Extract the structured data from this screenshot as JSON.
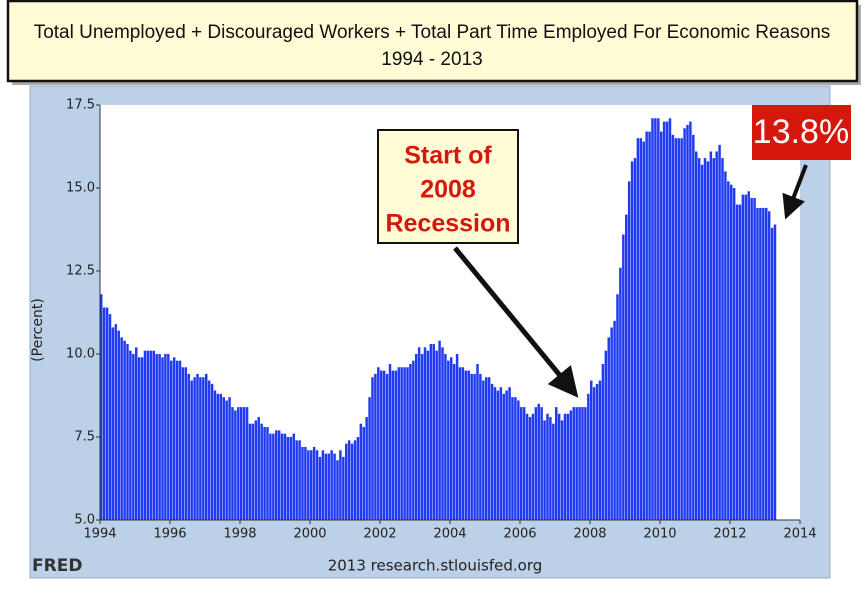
{
  "chart_data": {
    "type": "bar",
    "title": "Total Unemployed + Discouraged  Workers + Total Part Time Employed For Economic Reasons",
    "subtitle": "1994 - 2013",
    "y_label": "(Percent)",
    "source": "2013 research.stlouisfed.org",
    "logo": "FRED",
    "annotations": [
      {
        "lines": [
          "Start of",
          "2008",
          "Recession"
        ]
      },
      {
        "lines": [
          "13.8%"
        ]
      }
    ],
    "color": "#1f3af0",
    "grid": false,
    "xlim": [
      1994,
      2014
    ],
    "xticks": [
      1994,
      1996,
      1998,
      2000,
      2002,
      2004,
      2006,
      2008,
      2010,
      2012,
      2014
    ],
    "ylim": [
      5,
      17.5
    ],
    "yticks": [
      {
        "value": 5,
        "label": "5.0"
      },
      {
        "value": 7.5,
        "label": "7.5"
      },
      {
        "value": 10,
        "label": "10.0"
      },
      {
        "value": 12.5,
        "label": "12.5"
      },
      {
        "value": 15,
        "label": "15.0"
      },
      {
        "value": 17.5,
        "label": "17.5"
      }
    ],
    "x": [
      1994.0,
      1994.083,
      1994.167,
      1994.25,
      1994.333,
      1994.417,
      1994.5,
      1994.583,
      1994.667,
      1994.75,
      1994.833,
      1994.917,
      1995.0,
      1995.083,
      1995.167,
      1995.25,
      1995.333,
      1995.417,
      1995.5,
      1995.583,
      1995.667,
      1995.75,
      1995.833,
      1995.917,
      1996.0,
      1996.083,
      1996.167,
      1996.25,
      1996.333,
      1996.417,
      1996.5,
      1996.583,
      1996.667,
      1996.75,
      1996.833,
      1996.917,
      1997.0,
      1997.083,
      1997.167,
      1997.25,
      1997.333,
      1997.417,
      1997.5,
      1997.583,
      1997.667,
      1997.75,
      1997.833,
      1997.917,
      1998.0,
      1998.083,
      1998.167,
      1998.25,
      1998.333,
      1998.417,
      1998.5,
      1998.583,
      1998.667,
      1998.75,
      1998.833,
      1998.917,
      1999.0,
      1999.083,
      1999.167,
      1999.25,
      1999.333,
      1999.417,
      1999.5,
      1999.583,
      1999.667,
      1999.75,
      1999.833,
      1999.917,
      2000.0,
      2000.083,
      2000.167,
      2000.25,
      2000.333,
      2000.417,
      2000.5,
      2000.583,
      2000.667,
      2000.75,
      2000.833,
      2000.917,
      2001.0,
      2001.083,
      2001.167,
      2001.25,
      2001.333,
      2001.417,
      2001.5,
      2001.583,
      2001.667,
      2001.75,
      2001.833,
      2001.917,
      2002.0,
      2002.083,
      2002.167,
      2002.25,
      2002.333,
      2002.417,
      2002.5,
      2002.583,
      2002.667,
      2002.75,
      2002.833,
      2002.917,
      2003.0,
      2003.083,
      2003.167,
      2003.25,
      2003.333,
      2003.417,
      2003.5,
      2003.583,
      2003.667,
      2003.75,
      2003.833,
      2003.917,
      2004.0,
      2004.083,
      2004.167,
      2004.25,
      2004.333,
      2004.417,
      2004.5,
      2004.583,
      2004.667,
      2004.75,
      2004.833,
      2004.917,
      2005.0,
      2005.083,
      2005.167,
      2005.25,
      2005.333,
      2005.417,
      2005.5,
      2005.583,
      2005.667,
      2005.75,
      2005.833,
      2005.917,
      2006.0,
      2006.083,
      2006.167,
      2006.25,
      2006.333,
      2006.417,
      2006.5,
      2006.583,
      2006.667,
      2006.75,
      2006.833,
      2006.917,
      2007.0,
      2007.083,
      2007.167,
      2007.25,
      2007.333,
      2007.417,
      2007.5,
      2007.583,
      2007.667,
      2007.75,
      2007.833,
      2007.917,
      2008.0,
      2008.083,
      2008.167,
      2008.25,
      2008.333,
      2008.417,
      2008.5,
      2008.583,
      2008.667,
      2008.75,
      2008.833,
      2008.917,
      2009.0,
      2009.083,
      2009.167,
      2009.25,
      2009.333,
      2009.417,
      2009.5,
      2009.583,
      2009.667,
      2009.75,
      2009.833,
      2009.917,
      2010.0,
      2010.083,
      2010.167,
      2010.25,
      2010.333,
      2010.417,
      2010.5,
      2010.583,
      2010.667,
      2010.75,
      2010.833,
      2010.917,
      2011.0,
      2011.083,
      2011.167,
      2011.25,
      2011.333,
      2011.417,
      2011.5,
      2011.583,
      2011.667,
      2011.75,
      2011.833,
      2011.917,
      2012.0,
      2012.083,
      2012.167,
      2012.25,
      2012.333,
      2012.417,
      2012.5,
      2012.583,
      2012.667,
      2012.75,
      2012.833,
      2012.917,
      2013.0,
      2013.083,
      2013.167,
      2013.25
    ],
    "values": [
      11.8,
      11.4,
      11.4,
      11.2,
      10.8,
      10.9,
      10.7,
      10.5,
      10.4,
      10.3,
      10.1,
      10.0,
      10.2,
      9.9,
      9.9,
      10.1,
      10.1,
      10.1,
      10.1,
      10.0,
      10.0,
      9.9,
      10.0,
      10.0,
      9.8,
      9.9,
      9.8,
      9.8,
      9.6,
      9.6,
      9.4,
      9.2,
      9.3,
      9.4,
      9.3,
      9.3,
      9.4,
      9.2,
      9.1,
      8.9,
      8.8,
      8.8,
      8.7,
      8.6,
      8.7,
      8.4,
      8.3,
      8.4,
      8.4,
      8.4,
      8.4,
      7.9,
      7.9,
      8.0,
      8.1,
      7.9,
      7.8,
      7.8,
      7.6,
      7.6,
      7.7,
      7.7,
      7.6,
      7.6,
      7.5,
      7.5,
      7.6,
      7.4,
      7.4,
      7.2,
      7.2,
      7.1,
      7.1,
      7.2,
      7.1,
      6.9,
      7.1,
      7.0,
      7.0,
      7.1,
      7.0,
      6.8,
      7.1,
      6.9,
      7.3,
      7.4,
      7.3,
      7.4,
      7.5,
      7.9,
      7.8,
      8.1,
      8.7,
      9.3,
      9.4,
      9.6,
      9.5,
      9.5,
      9.4,
      9.7,
      9.5,
      9.5,
      9.6,
      9.6,
      9.6,
      9.6,
      9.7,
      9.8,
      10.0,
      10.2,
      10.0,
      10.2,
      10.1,
      10.3,
      10.3,
      10.1,
      10.4,
      10.2,
      10.0,
      9.8,
      9.9,
      9.7,
      10.0,
      9.6,
      9.6,
      9.5,
      9.5,
      9.4,
      9.4,
      9.7,
      9.4,
      9.2,
      9.3,
      9.3,
      9.1,
      9.0,
      8.9,
      9.0,
      8.8,
      8.9,
      9.0,
      8.7,
      8.7,
      8.6,
      8.4,
      8.4,
      8.2,
      8.1,
      8.2,
      8.4,
      8.5,
      8.4,
      8.0,
      8.2,
      8.1,
      7.9,
      8.4,
      8.2,
      8.0,
      8.2,
      8.2,
      8.3,
      8.4,
      8.4,
      8.4,
      8.4,
      8.4,
      8.8,
      9.2,
      9.0,
      9.1,
      9.2,
      9.7,
      10.1,
      10.5,
      10.8,
      11.0,
      11.8,
      12.6,
      13.6,
      14.2,
      15.2,
      15.8,
      15.9,
      16.5,
      16.5,
      16.4,
      16.7,
      16.7,
      17.1,
      17.1,
      17.1,
      16.7,
      17.0,
      17.0,
      17.1,
      16.6,
      16.5,
      16.5,
      16.5,
      16.8,
      16.9,
      17.0,
      16.6,
      16.1,
      15.9,
      15.7,
      15.9,
      15.8,
      16.1,
      15.9,
      16.1,
      16.3,
      15.9,
      15.5,
      15.2,
      15.1,
      15.0,
      14.5,
      14.5,
      14.8,
      14.8,
      14.9,
      14.7,
      14.7,
      14.4,
      14.4,
      14.4,
      14.4,
      14.3,
      13.8,
      13.9
    ]
  }
}
